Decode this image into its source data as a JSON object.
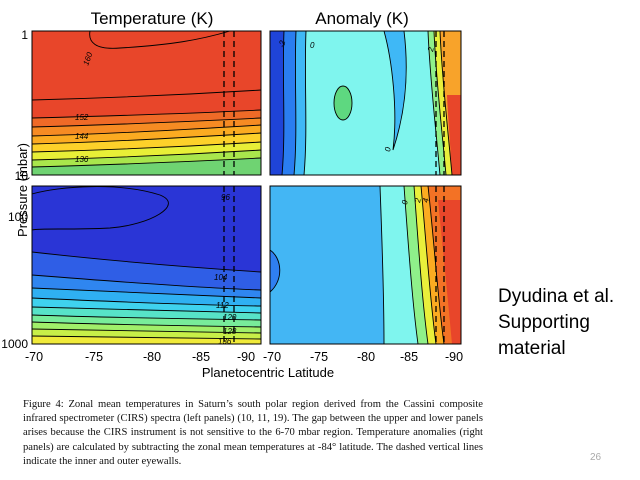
{
  "chart_data": {
    "type": "heatmap",
    "y_axis": {
      "label": "Pressure (mbar)",
      "scale": "log",
      "upper_ticks": [
        "1",
        "10"
      ],
      "lower_ticks": [
        "100",
        "1000"
      ]
    },
    "x_axis": {
      "label": "Planetocentric Latitude",
      "ticks": [
        "-70",
        "-75",
        "-80",
        "-85",
        "-90"
      ]
    },
    "panels": [
      {
        "id": "temperature",
        "title": "Temperature (K)",
        "contour_labels": [
          "160",
          "152",
          "144",
          "136",
          "96",
          "104",
          "112",
          "120",
          "128",
          "136"
        ]
      },
      {
        "id": "anomaly",
        "title": "Anomaly (K)",
        "contour_labels": [
          "-2",
          "0",
          "0",
          "2",
          "0",
          "2",
          "4"
        ]
      }
    ],
    "eyewalls_latitude": [
      -87.5,
      -88.5
    ]
  },
  "side_note": [
    "Dyudina et al.",
    "Supporting",
    "material"
  ],
  "caption": "Figure 4: Zonal mean temperatures in Saturn’s south polar region derived from the Cassini composite infrared spectrometer (CIRS) spectra (left panels) (10, 11, 19). The gap between the upper and lower panels arises because the CIRS instrument is not sensitive to the 6-70 mbar region. Temperature anomalies (right panels) are calculated by subtracting the zonal mean temperatures at -84° latitude. The dashed vertical lines indicate the inner and outer eyewalls.",
  "page_number": "26"
}
